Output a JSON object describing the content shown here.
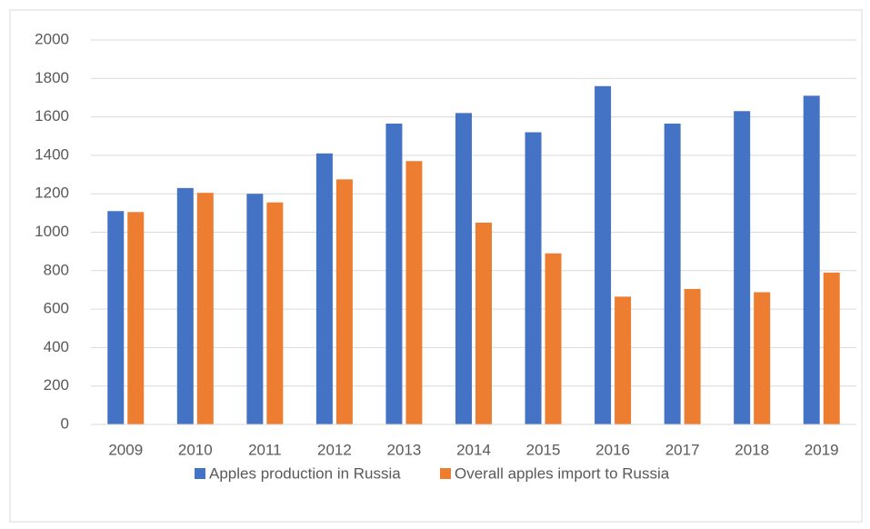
{
  "chart_data": {
    "type": "bar",
    "categories": [
      "2009",
      "2010",
      "2011",
      "2012",
      "2013",
      "2014",
      "2015",
      "2016",
      "2017",
      "2018",
      "2019"
    ],
    "series": [
      {
        "name": "Apples production in Russia",
        "color": "#4472c4",
        "values": [
          1110,
          1230,
          1200,
          1410,
          1565,
          1620,
          1520,
          1760,
          1565,
          1630,
          1710
        ]
      },
      {
        "name": "Overall apples import to Russia",
        "color": "#ed7d31",
        "values": [
          1105,
          1205,
          1155,
          1275,
          1370,
          1050,
          890,
          665,
          705,
          688,
          790
        ]
      }
    ],
    "ylim": [
      0,
      2000
    ],
    "yticks": [
      0,
      200,
      400,
      600,
      800,
      1000,
      1200,
      1400,
      1600,
      1800,
      2000
    ],
    "grid": true,
    "legend": "bottom"
  }
}
